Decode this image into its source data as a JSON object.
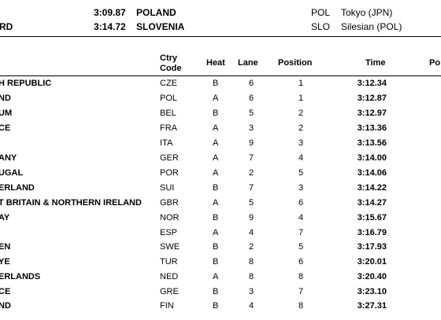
{
  "records": [
    {
      "label": "",
      "time": "3:09.87",
      "nation": "POLAND",
      "code": "POL",
      "venue": "Tokyo (JPN)"
    },
    {
      "label": "RD",
      "time": "3:14.72",
      "nation": "SLOVENIA",
      "code": "SLO",
      "venue": "Silesian (POL)"
    }
  ],
  "headers": {
    "ctry_line1": "Ctry",
    "ctry_line2": "Code",
    "heat": "Heat",
    "lane": "Lane",
    "position": "Position",
    "time": "Time",
    "extra": "Po"
  },
  "rows": [
    {
      "name": "H REPUBLIC",
      "code": "CZE",
      "heat": "B",
      "lane": "6",
      "position": "1",
      "time": "3:12.34"
    },
    {
      "name": "ND",
      "code": "POL",
      "heat": "A",
      "lane": "6",
      "position": "1",
      "time": "3:12.87"
    },
    {
      "name": "UM",
      "code": "BEL",
      "heat": "B",
      "lane": "5",
      "position": "2",
      "time": "3:12.97"
    },
    {
      "name": "CE",
      "code": "FRA",
      "heat": "A",
      "lane": "3",
      "position": "2",
      "time": "3:13.36"
    },
    {
      "name": "",
      "code": "ITA",
      "heat": "A",
      "lane": "9",
      "position": "3",
      "time": "3:13.56"
    },
    {
      "name": "ANY",
      "code": "GER",
      "heat": "A",
      "lane": "7",
      "position": "4",
      "time": "3:14.00"
    },
    {
      "name": "UGAL",
      "code": "POR",
      "heat": "A",
      "lane": "2",
      "position": "5",
      "time": "3:14.06"
    },
    {
      "name": "ERLAND",
      "code": "SUI",
      "heat": "B",
      "lane": "7",
      "position": "3",
      "time": "3:14.22"
    },
    {
      "name": "T BRITAIN & NORTHERN IRELAND",
      "code": "GBR",
      "heat": "A",
      "lane": "5",
      "position": "6",
      "time": "3:14.27"
    },
    {
      "name": "AY",
      "code": "NOR",
      "heat": "B",
      "lane": "9",
      "position": "4",
      "time": "3:15.67"
    },
    {
      "name": "",
      "code": "ESP",
      "heat": "A",
      "lane": "4",
      "position": "7",
      "time": "3:16.79"
    },
    {
      "name": "EN",
      "code": "SWE",
      "heat": "B",
      "lane": "2",
      "position": "5",
      "time": "3:17.93"
    },
    {
      "name": "YE",
      "code": "TUR",
      "heat": "B",
      "lane": "8",
      "position": "6",
      "time": "3:20.01"
    },
    {
      "name": "ERLANDS",
      "code": "NED",
      "heat": "A",
      "lane": "8",
      "position": "8",
      "time": "3:20.40"
    },
    {
      "name": "CE",
      "code": "GRE",
      "heat": "B",
      "lane": "3",
      "position": "7",
      "time": "3:23.10"
    },
    {
      "name": "ND",
      "code": "FIN",
      "heat": "B",
      "lane": "4",
      "position": "8",
      "time": "3:27.31"
    }
  ]
}
